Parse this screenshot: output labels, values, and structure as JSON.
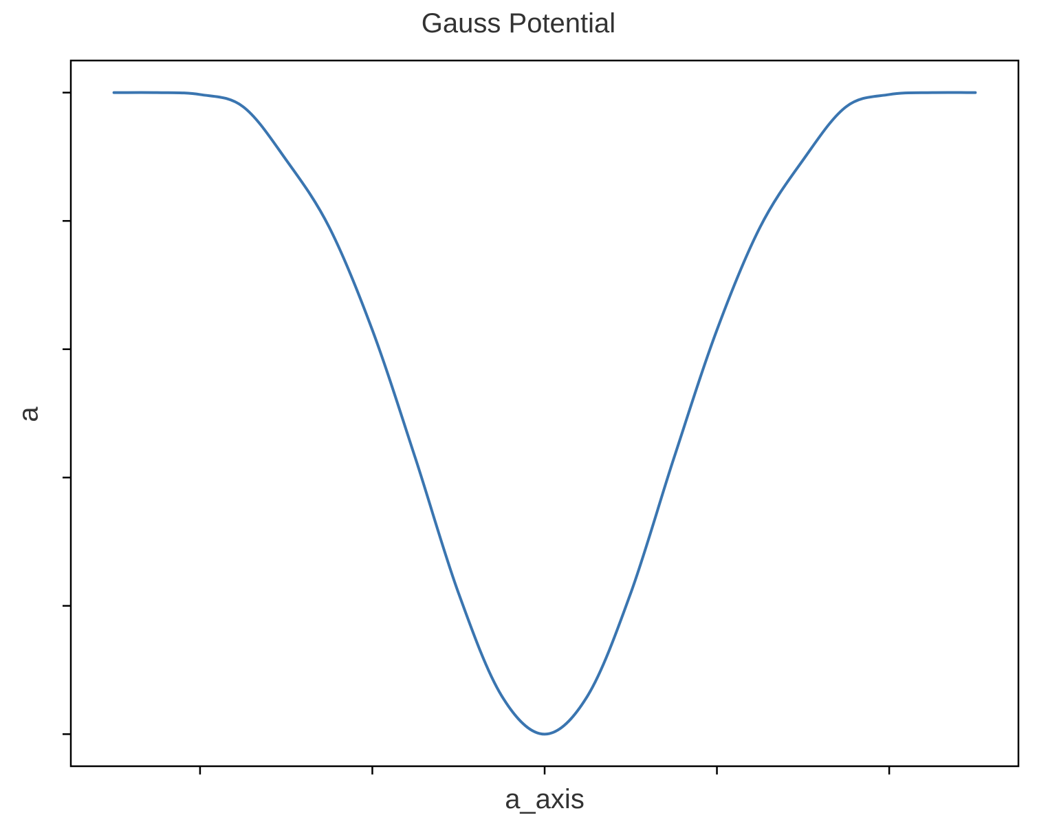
{
  "chart_data": {
    "type": "line",
    "title": "Gauss Potential",
    "xlabel": "a_axis",
    "ylabel": "a",
    "xlim": [
      -2.75,
      2.75
    ],
    "ylim": [
      -1.05,
      0.05
    ],
    "x_ticks": [
      -2,
      -1,
      0,
      1,
      2
    ],
    "y_ticks": [
      -1.0,
      -0.8,
      -0.6,
      -0.4,
      -0.2,
      0.0
    ],
    "tick_labels_shown": false,
    "grid": false,
    "legend": "none",
    "series": [
      {
        "color": "#3a75b0",
        "x": [
          -2.5,
          -2.25,
          -2.0,
          -1.75,
          -1.5,
          -1.25,
          -1.0,
          -0.75,
          -0.5,
          -0.25,
          0.0,
          0.25,
          0.5,
          0.75,
          1.0,
          1.25,
          1.5,
          1.75,
          2.0,
          2.25,
          2.5
        ],
        "y": [
          0.0,
          0.0,
          -0.003,
          -0.022,
          -0.105,
          -0.21,
          -0.37,
          -0.57,
          -0.78,
          -0.94,
          -1.0,
          -0.94,
          -0.78,
          -0.57,
          -0.37,
          -0.21,
          -0.105,
          -0.022,
          -0.003,
          0.0,
          0.0
        ]
      }
    ]
  }
}
